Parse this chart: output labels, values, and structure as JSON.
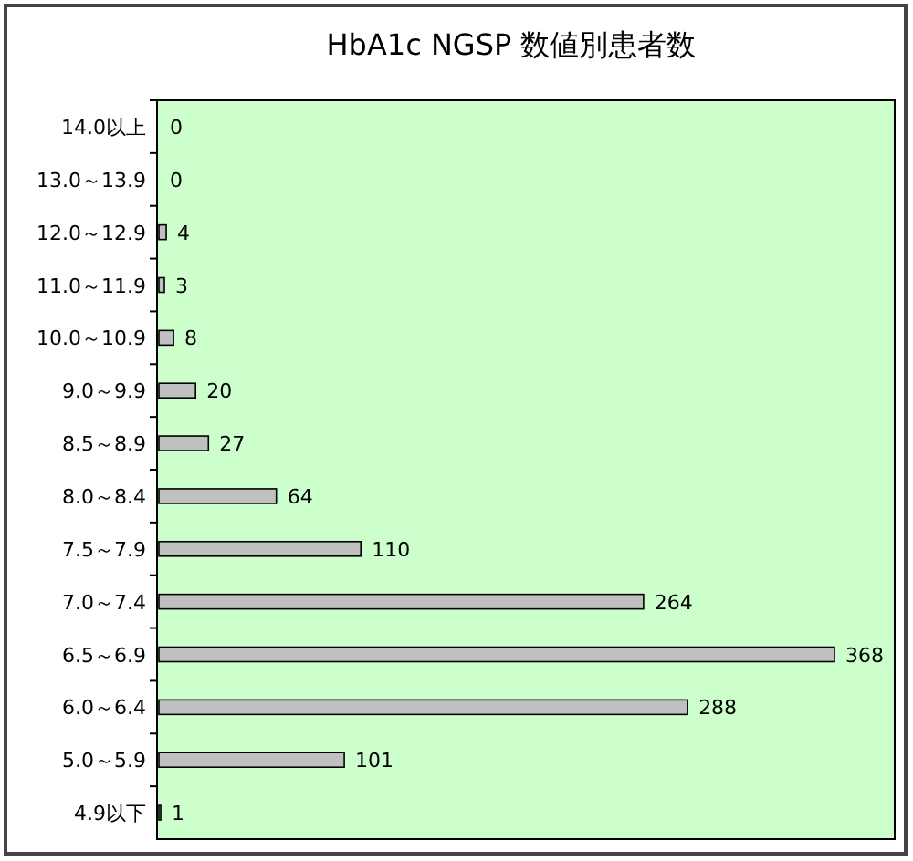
{
  "chart_data": {
    "type": "bar",
    "orientation": "horizontal",
    "title": "HbA1c NGSP 数値別患者数",
    "categories": [
      "14.0以上",
      "13.0～13.9",
      "12.0～12.9",
      "11.0～11.9",
      "10.0～10.9",
      "9.0～9.9",
      "8.5～8.9",
      "8.0～8.4",
      "7.5～7.9",
      "7.0～7.4",
      "6.5～6.9",
      "6.0～6.4",
      "5.0～5.9",
      "4.9以下"
    ],
    "values": [
      0,
      0,
      4,
      3,
      8,
      20,
      27,
      64,
      110,
      264,
      368,
      288,
      101,
      1
    ],
    "color": "#c0c0c0",
    "data_labels": true
  }
}
